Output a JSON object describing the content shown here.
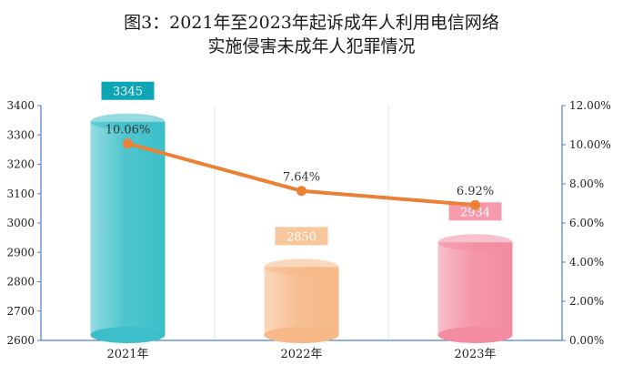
{
  "chart_data": {
    "type": "bar",
    "title_lines": [
      "图3：2021年至2023年起诉成年人利用电信网络",
      "实施侵害未成年人犯罪情况"
    ],
    "categories": [
      "2021年",
      "2022年",
      "2023年"
    ],
    "series": [
      {
        "chart_type": "bar",
        "axis": "left",
        "values": [
          3345,
          2850,
          2934
        ],
        "colors": [
          "#3cbfc9",
          "#f6b886",
          "#f38ca0"
        ],
        "label_colors": [
          "#0ea5b6",
          "#f8c69b",
          "#f79aac"
        ]
      },
      {
        "chart_type": "line",
        "axis": "right",
        "values": [
          10.06,
          7.64,
          6.92
        ],
        "value_labels": [
          "10.06%",
          "7.64%",
          "6.92%"
        ],
        "color": "#ea8137"
      }
    ],
    "y_left": {
      "min": 2600,
      "max": 3400,
      "ticks": [
        "2600",
        "2700",
        "2800",
        "2900",
        "3000",
        "3100",
        "3200",
        "3300",
        "3400"
      ]
    },
    "y_right": {
      "min": 0,
      "max": 12,
      "ticks": [
        "0.00%",
        "2.00%",
        "4.00%",
        "6.00%",
        "8.00%",
        "10.00%",
        "12.00%"
      ]
    },
    "grid": "vertical",
    "legend": "none"
  }
}
